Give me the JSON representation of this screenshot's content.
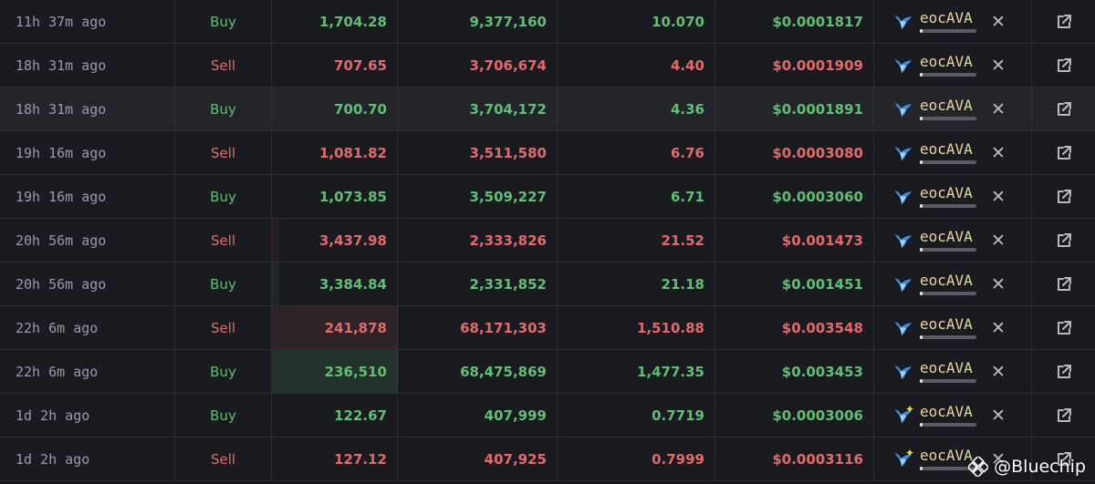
{
  "maker_name": "eocAVA",
  "watermark": "@Bluechip",
  "colors": {
    "buy": "#5fbf73",
    "sell": "#e36a6a",
    "background": "#1a1b20",
    "maker": "#e8d89a"
  },
  "icons": {
    "maker": "whale-icon",
    "remove": "close-icon",
    "open": "external-link-icon"
  },
  "rows": [
    {
      "time": "11h 37m ago",
      "type": "Buy",
      "usd": "1,704.28",
      "tokens": "9,377,160",
      "ava": "10.070",
      "price": "$0.0001817"
    },
    {
      "time": "18h 31m ago",
      "type": "Sell",
      "usd": "707.65",
      "tokens": "3,706,674",
      "ava": "4.40",
      "price": "$0.0001909"
    },
    {
      "time": "18h 31m ago",
      "type": "Buy",
      "usd": "700.70",
      "tokens": "3,704,172",
      "ava": "4.36",
      "price": "$0.0001891"
    },
    {
      "time": "19h 16m ago",
      "type": "Sell",
      "usd": "1,081.82",
      "tokens": "3,511,580",
      "ava": "6.76",
      "price": "$0.0003080"
    },
    {
      "time": "19h 16m ago",
      "type": "Buy",
      "usd": "1,073.85",
      "tokens": "3,509,227",
      "ava": "6.71",
      "price": "$0.0003060"
    },
    {
      "time": "20h 56m ago",
      "type": "Sell",
      "usd": "3,437.98",
      "tokens": "2,333,826",
      "ava": "21.52",
      "price": "$0.001473"
    },
    {
      "time": "20h 56m ago",
      "type": "Buy",
      "usd": "3,384.84",
      "tokens": "2,331,852",
      "ava": "21.18",
      "price": "$0.001451"
    },
    {
      "time": "22h 6m ago",
      "type": "Sell",
      "usd": "241,878",
      "tokens": "68,171,303",
      "ava": "1,510.88",
      "price": "$0.003548"
    },
    {
      "time": "22h 6m ago",
      "type": "Buy",
      "usd": "236,510",
      "tokens": "68,475,869",
      "ava": "1,477.35",
      "price": "$0.003453"
    },
    {
      "time": "1d 2h ago",
      "type": "Buy",
      "usd": "122.67",
      "tokens": "407,999",
      "ava": "0.7719",
      "price": "$0.0003006"
    },
    {
      "time": "1d 2h ago",
      "type": "Sell",
      "usd": "127.12",
      "tokens": "407,925",
      "ava": "0.7999",
      "price": "$0.0003116"
    }
  ]
}
